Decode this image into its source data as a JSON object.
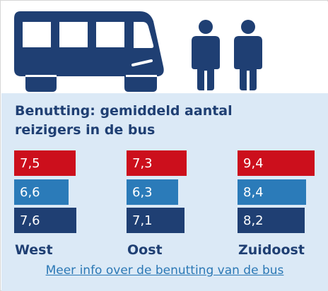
{
  "colors": {
    "red": "#cc0f1c",
    "blue": "#2b7bb9",
    "navy": "#1f3f73"
  },
  "chart_data": {
    "type": "bar",
    "title": "Benutting: gemiddeld aantal reizigers in de bus",
    "categories": [
      "West",
      "Oost",
      "Zuidoost"
    ],
    "series": [
      {
        "values": [
          7.5,
          7.3,
          9.4
        ],
        "labels": [
          "7,5",
          "7,3",
          "9,4"
        ],
        "color": "red"
      },
      {
        "values": [
          6.6,
          6.3,
          8.4
        ],
        "labels": [
          "6,6",
          "6,3",
          "8,4"
        ],
        "color": "blue"
      },
      {
        "values": [
          7.6,
          7.1,
          8.2
        ],
        "labels": [
          "7,6",
          "7,1",
          "8,2"
        ],
        "color": "navy"
      }
    ],
    "ylim": [
      0,
      9.4
    ]
  },
  "link": {
    "label": "Meer info over de benutting van de bus"
  },
  "icons": [
    "bus-icon",
    "person-icon",
    "person-icon"
  ]
}
